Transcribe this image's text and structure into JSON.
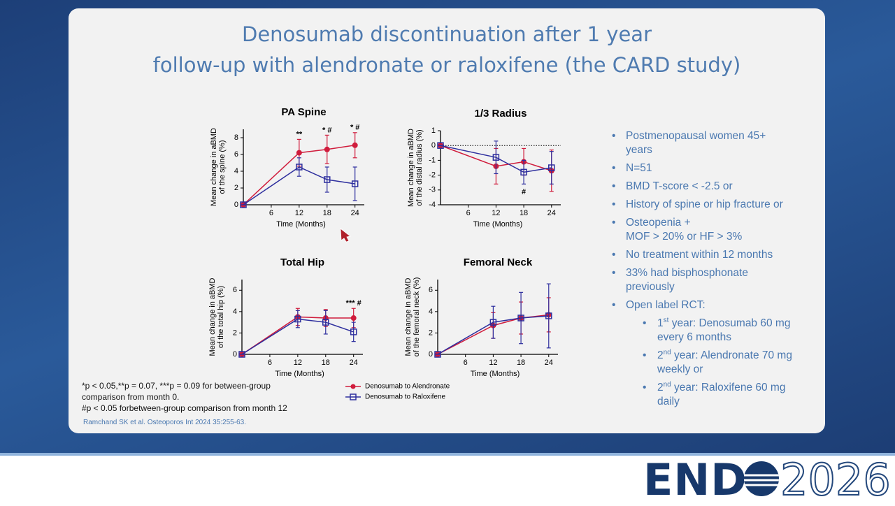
{
  "slide": {
    "title": [
      "Denosumab discontinuation after 1 year",
      "follow-up with alendronate or raloxifene (the CARD study)"
    ],
    "bullets": [
      {
        "lines": [
          "Postmenopausal women 45+",
          "years"
        ]
      },
      {
        "lines": [
          "N=51"
        ]
      },
      {
        "lines": [
          "BMD T-score < -2.5 or"
        ]
      },
      {
        "lines": [
          "History of spine or hip fracture or"
        ]
      },
      {
        "lines": [
          "Osteopenia +",
          "MOF > 20% or HF > 3%"
        ]
      },
      {
        "lines": [
          "No treatment within 12 months"
        ]
      },
      {
        "lines": [
          "33% had bisphosphonate",
          "previously"
        ]
      },
      {
        "lines": [
          "Open label RCT:"
        ],
        "sub": [
          {
            "prefix": "1",
            "sup": "st",
            "lines": [
              " year: Denosumab 60 mg",
              "every 6 months"
            ]
          },
          {
            "prefix": "2",
            "sup": "nd",
            "lines": [
              " year: Alendronate 70 mg",
              "weekly or"
            ]
          },
          {
            "prefix": "2",
            "sup": "nd",
            "lines": [
              " year: Raloxifene 60 mg",
              "daily"
            ]
          }
        ]
      }
    ],
    "footnote": [
      "*p < 0.05,**p = 0.07, ***p = 0.09 for between-group",
      "comparison from month 0.",
      "#p < 0.05 forbetween-group comparison from month 12"
    ],
    "citation": "Ramchand SK et al. Osteoporos Int 2024 35:255-63."
  },
  "logo": {
    "name": "END",
    "year": "2026"
  },
  "chart_data": [
    {
      "type": "line",
      "title": "PA Spine",
      "ylabel": [
        "Mean change in aBMD",
        "of the spine (%)"
      ],
      "xlabel": "Time (Months)",
      "x": [
        0,
        12,
        18,
        24
      ],
      "xlim": [
        0,
        26
      ],
      "xticks": [
        6,
        12,
        18,
        24
      ],
      "ylim": [
        0,
        9
      ],
      "yticks": [
        0,
        2,
        4,
        6,
        8
      ],
      "series": [
        {
          "name": "Denosumab to Alendronate",
          "color": "#d01c3c",
          "marker": "circle",
          "values": [
            0,
            6.2,
            6.6,
            7.1
          ],
          "errors": [
            0,
            1.6,
            1.7,
            1.5
          ]
        },
        {
          "name": "Denosumab to Raloxifene",
          "color": "#2e2f9e",
          "marker": "square",
          "values": [
            0,
            4.5,
            3.0,
            2.5
          ],
          "errors": [
            0,
            1.1,
            1.5,
            2.0
          ]
        }
      ],
      "annotations": [
        {
          "x": 12,
          "text": "**",
          "placement": "above"
        },
        {
          "x": 18,
          "text": "* #",
          "placement": "above"
        },
        {
          "x": 24,
          "text": "* #",
          "placement": "above"
        }
      ]
    },
    {
      "type": "line",
      "title": "1/3 Radius",
      "ylabel": [
        "Mean change in aBMD",
        "of the distal radius (%)"
      ],
      "xlabel": "Time (Months)",
      "x": [
        0,
        12,
        18,
        24
      ],
      "xlim": [
        0,
        26
      ],
      "xticks": [
        6,
        12,
        18,
        24
      ],
      "ylim": [
        -4,
        1
      ],
      "yticks": [
        1,
        0,
        -1,
        -2,
        -3,
        -4
      ],
      "zero_line": true,
      "series": [
        {
          "color": "#d01c3c",
          "marker": "circle",
          "values": [
            0,
            -1.4,
            -1.1,
            -1.7
          ],
          "errors": [
            0,
            1.2,
            0.9,
            1.4
          ]
        },
        {
          "color": "#2e2f9e",
          "marker": "square",
          "values": [
            0,
            -0.8,
            -1.8,
            -1.5
          ],
          "errors": [
            0,
            1.1,
            0.8,
            1.1
          ]
        }
      ],
      "annotations": [
        {
          "x": 18,
          "text": "#",
          "placement": "below"
        }
      ]
    },
    {
      "type": "line",
      "title": "Total Hip",
      "ylabel": [
        "Mean change in aBMD",
        "of the total hip (%)"
      ],
      "xlabel": "Time (Months)",
      "x": [
        0,
        12,
        18,
        24
      ],
      "xlim": [
        0,
        26
      ],
      "xticks": [
        6,
        12,
        18,
        24
      ],
      "ylim": [
        0,
        7
      ],
      "yticks": [
        0,
        2,
        4,
        6
      ],
      "series": [
        {
          "color": "#d01c3c",
          "marker": "circle",
          "values": [
            0,
            3.5,
            3.4,
            3.4
          ],
          "errors": [
            0,
            0.8,
            0.8,
            0.9
          ]
        },
        {
          "color": "#2e2f9e",
          "marker": "square",
          "values": [
            0,
            3.3,
            3.0,
            2.1
          ],
          "errors": [
            0,
            0.8,
            1.1,
            0.9
          ]
        }
      ],
      "annotations": [
        {
          "x": 24,
          "text": "*** #",
          "placement": "above"
        }
      ]
    },
    {
      "type": "line",
      "title": "Femoral Neck",
      "ylabel": [
        "Mean change in aBMD",
        "of the femoral neck (%)"
      ],
      "xlabel": "Time (Months)",
      "x": [
        0,
        12,
        18,
        24
      ],
      "xlim": [
        0,
        26
      ],
      "xticks": [
        6,
        12,
        18,
        24
      ],
      "ylim": [
        0,
        7
      ],
      "yticks": [
        0,
        2,
        4,
        6
      ],
      "series": [
        {
          "color": "#d01c3c",
          "marker": "circle",
          "values": [
            0,
            2.7,
            3.4,
            3.7
          ],
          "errors": [
            0,
            1.2,
            1.5,
            1.6
          ]
        },
        {
          "color": "#2e2f9e",
          "marker": "square",
          "values": [
            0,
            3.0,
            3.4,
            3.6
          ],
          "errors": [
            0,
            1.5,
            2.4,
            3.0
          ]
        }
      ],
      "annotations": []
    }
  ]
}
